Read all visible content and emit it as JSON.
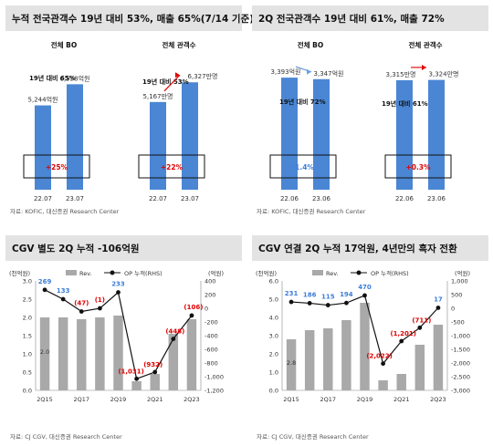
{
  "panels": {
    "p1": {
      "title": "누적 전국관객수 19년 대비 53%, 매출 65%(7/14 기준)",
      "source": "자료: KOFIC, 대신증권 Research Center",
      "left": {
        "label": "전체 BO",
        "periods": [
          "22.07",
          "23.07"
        ],
        "values": [
          5244,
          6558
        ],
        "value_labels": [
          "5,244억원",
          "6,558억원"
        ],
        "ratio_label": "19년 대비 65%",
        "growth_label": "+25%"
      },
      "right": {
        "label": "전체 관객수",
        "periods": [
          "22.07",
          "23.07"
        ],
        "values": [
          5167,
          6327
        ],
        "value_labels": [
          "5,167만명",
          "6,327만명"
        ],
        "ratio_label": "19년 대비 53%",
        "growth_label": "+22%"
      }
    },
    "p2": {
      "title": "2Q 전국관객수 19년 대비 61%, 매출 72%",
      "source": "자료: KOFIC, 대신증권 Research Center",
      "left": {
        "label": "전체 BO",
        "periods": [
          "22.06",
          "23.06"
        ],
        "values": [
          3393,
          3347
        ],
        "value_labels": [
          "3,393억원",
          "3,347억원"
        ],
        "ratio_label": "19년 대비 72%",
        "growth_label": "-1.4%"
      },
      "right": {
        "label": "전체 관객수",
        "periods": [
          "22.06",
          "23.06"
        ],
        "values": [
          3315,
          3324
        ],
        "value_labels": [
          "3,315만명",
          "3,324만명"
        ],
        "ratio_label": "19년 대비 61%",
        "growth_label": "+0.3%"
      }
    },
    "p3": {
      "title": "CGV 별도 2Q 누적 -106억원",
      "source": "자료: CJ CGV, 대신증권 Research Center",
      "left_unit": "(천억원)",
      "right_unit": "(억원)",
      "legend_rev": "Rev.",
      "legend_op": "OP 누적(RHS)",
      "first_bar_label": "2.0"
    },
    "p4": {
      "title": "CGV 연결 2Q 누적 17억원, 4년만의 흑자 전환",
      "source": "자료: CJ CGV, 대신증권 Research Center",
      "left_unit": "(천억원)",
      "right_unit": "(억원)",
      "legend_rev": "Rev.",
      "legend_op": "OP 누적(RHS)",
      "first_bar_label": "2.8"
    }
  },
  "colors": {
    "blue": "#4a86d4",
    "gray": "#a9a9a9",
    "red": "#e00000",
    "label_blue": "#3d7dd8"
  },
  "chart_data": [
    {
      "type": "bar",
      "title": "누적 전국관객수 19년 대비 53%, 매출 65%(7/14 기준)",
      "panels": [
        {
          "name": "전체 BO",
          "categories": [
            "22.07",
            "23.07"
          ],
          "values": [
            5244,
            6558
          ],
          "unit": "억원"
        },
        {
          "name": "전체 관객수",
          "categories": [
            "22.07",
            "23.07"
          ],
          "values": [
            5167,
            6327
          ],
          "unit": "만명"
        }
      ]
    },
    {
      "type": "bar",
      "title": "2Q 전국관객수 19년 대비 61%, 매출 72%",
      "panels": [
        {
          "name": "전체 BO",
          "categories": [
            "22.06",
            "23.06"
          ],
          "values": [
            3393,
            3347
          ],
          "unit": "억원"
        },
        {
          "name": "전체 관객수",
          "categories": [
            "22.06",
            "23.06"
          ],
          "values": [
            3315,
            3324
          ],
          "unit": "만명"
        }
      ]
    },
    {
      "type": "bar",
      "title": "CGV 별도 2Q 누적 -106억원",
      "x_ticks": [
        "2Q15",
        "2Q17",
        "2Q19",
        "2Q21",
        "2Q23"
      ],
      "ylim": [
        0,
        3.0
      ],
      "y2lim": [
        -1200,
        400
      ],
      "y_ticks": [
        0.0,
        0.5,
        1.0,
        1.5,
        2.0,
        2.5,
        3.0
      ],
      "y2_ticks": [
        -1200,
        -1000,
        -800,
        -600,
        -400,
        -200,
        0,
        200,
        400
      ],
      "series": [
        {
          "name": "Rev.",
          "axis": "left",
          "values": [
            2.0,
            2.0,
            1.95,
            2.0,
            2.05,
            0.25,
            0.45,
            1.55,
            1.95
          ]
        },
        {
          "name": "OP 누적(RHS)",
          "axis": "right",
          "values": [
            269,
            133,
            -47,
            -1,
            233,
            -1031,
            -932,
            -448,
            -106
          ],
          "labels": [
            "269",
            "133",
            "(47)",
            "(1)",
            "233",
            "(1,031)",
            "(932)",
            "(448)",
            "(106)"
          ]
        }
      ]
    },
    {
      "type": "bar",
      "title": "CGV 연결 2Q 누적 17억원, 4년만의 흑자 전환",
      "x_ticks": [
        "2Q15",
        "2Q17",
        "2Q19",
        "2Q21",
        "2Q23"
      ],
      "ylim": [
        0,
        6.0
      ],
      "y2lim": [
        -3000,
        1000
      ],
      "y_ticks": [
        0.0,
        1.0,
        2.0,
        3.0,
        4.0,
        5.0,
        6.0
      ],
      "y2_ticks": [
        -3000,
        -2500,
        -2000,
        -1500,
        -1000,
        -500,
        0,
        500,
        1000
      ],
      "series": [
        {
          "name": "Rev.",
          "axis": "left",
          "values": [
            2.8,
            3.3,
            3.4,
            3.85,
            4.8,
            0.55,
            0.9,
            2.5,
            3.6
          ]
        },
        {
          "name": "OP 누적(RHS)",
          "axis": "right",
          "values": [
            231,
            186,
            115,
            194,
            470,
            -2022,
            -1201,
            -711,
            17
          ],
          "labels": [
            "231",
            "186",
            "115",
            "194",
            "470",
            "(2,022)",
            "(1,201)",
            "(711)",
            "17"
          ]
        }
      ]
    }
  ]
}
